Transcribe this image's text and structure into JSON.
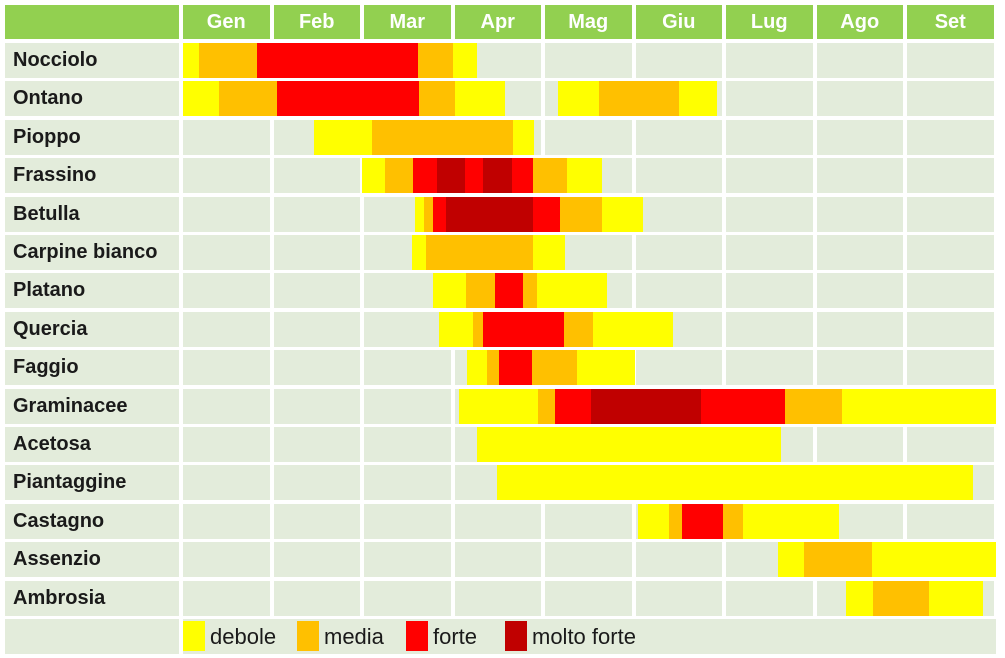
{
  "colors": {
    "header_bg": "#92D050",
    "header_text": "#FFFFFF",
    "cell_bg": "#E3ECDB",
    "label_text": "#1A1A1A",
    "background": "#FFFFFF"
  },
  "legend": {
    "items": [
      "debole",
      "media",
      "forte",
      "molto forte"
    ]
  },
  "chart_data": {
    "type": "heatmap",
    "title": "",
    "x_categories": [
      "Gen",
      "Feb",
      "Mar",
      "Apr",
      "Mag",
      "Giu",
      "Lug",
      "Ago",
      "Set"
    ],
    "x_unit": "months from start of Gen",
    "x_range": [
      0,
      9
    ],
    "legend_position": "bottom",
    "levels": [
      {
        "name": "debole",
        "color": "#FFFF00"
      },
      {
        "name": "media",
        "color": "#FFC000"
      },
      {
        "name": "forte",
        "color": "#FF0000"
      },
      {
        "name": "molto forte",
        "color": "#C00000"
      }
    ],
    "rows": [
      {
        "label": "Nocciolo",
        "segments": [
          {
            "start": 0.0,
            "end": 0.18,
            "level": "debole"
          },
          {
            "start": 0.18,
            "end": 0.82,
            "level": "media"
          },
          {
            "start": 0.82,
            "end": 2.6,
            "level": "forte"
          },
          {
            "start": 2.6,
            "end": 2.98,
            "level": "media"
          },
          {
            "start": 2.98,
            "end": 3.25,
            "level": "debole"
          }
        ]
      },
      {
        "label": "Ontano",
        "segments": [
          {
            "start": 0.0,
            "end": 0.4,
            "level": "debole"
          },
          {
            "start": 0.4,
            "end": 1.04,
            "level": "media"
          },
          {
            "start": 1.04,
            "end": 2.61,
            "level": "forte"
          },
          {
            "start": 2.61,
            "end": 3.01,
            "level": "media"
          },
          {
            "start": 3.01,
            "end": 3.56,
            "level": "debole"
          },
          {
            "start": 4.14,
            "end": 4.6,
            "level": "debole"
          },
          {
            "start": 4.6,
            "end": 5.48,
            "level": "media"
          },
          {
            "start": 5.48,
            "end": 5.9,
            "level": "debole"
          }
        ]
      },
      {
        "label": "Pioppo",
        "segments": [
          {
            "start": 1.45,
            "end": 2.09,
            "level": "debole"
          },
          {
            "start": 2.09,
            "end": 3.65,
            "level": "media"
          },
          {
            "start": 3.65,
            "end": 3.88,
            "level": "debole"
          }
        ]
      },
      {
        "label": "Frassino",
        "segments": [
          {
            "start": 1.98,
            "end": 2.23,
            "level": "debole"
          },
          {
            "start": 2.23,
            "end": 2.54,
            "level": "media"
          },
          {
            "start": 2.54,
            "end": 2.81,
            "level": "forte"
          },
          {
            "start": 2.81,
            "end": 3.12,
            "level": "molto forte"
          },
          {
            "start": 3.12,
            "end": 3.31,
            "level": "forte"
          },
          {
            "start": 3.31,
            "end": 3.64,
            "level": "molto forte"
          },
          {
            "start": 3.64,
            "end": 3.87,
            "level": "forte"
          },
          {
            "start": 3.87,
            "end": 4.24,
            "level": "media"
          },
          {
            "start": 4.24,
            "end": 4.63,
            "level": "debole"
          }
        ]
      },
      {
        "label": "Betulla",
        "segments": [
          {
            "start": 2.56,
            "end": 2.66,
            "level": "debole"
          },
          {
            "start": 2.66,
            "end": 2.76,
            "level": "media"
          },
          {
            "start": 2.76,
            "end": 2.91,
            "level": "forte"
          },
          {
            "start": 2.91,
            "end": 3.87,
            "level": "molto forte"
          },
          {
            "start": 3.87,
            "end": 4.17,
            "level": "forte"
          },
          {
            "start": 4.17,
            "end": 4.63,
            "level": "media"
          },
          {
            "start": 4.63,
            "end": 5.08,
            "level": "debole"
          }
        ]
      },
      {
        "label": "Carpine bianco",
        "segments": [
          {
            "start": 2.53,
            "end": 2.69,
            "level": "debole"
          },
          {
            "start": 2.69,
            "end": 3.87,
            "level": "media"
          },
          {
            "start": 3.87,
            "end": 4.22,
            "level": "debole"
          }
        ]
      },
      {
        "label": "Platano",
        "segments": [
          {
            "start": 2.76,
            "end": 3.13,
            "level": "debole"
          },
          {
            "start": 3.13,
            "end": 3.45,
            "level": "media"
          },
          {
            "start": 3.45,
            "end": 3.76,
            "level": "forte"
          },
          {
            "start": 3.76,
            "end": 3.91,
            "level": "media"
          },
          {
            "start": 3.91,
            "end": 4.69,
            "level": "debole"
          }
        ]
      },
      {
        "label": "Quercia",
        "segments": [
          {
            "start": 2.83,
            "end": 3.2,
            "level": "debole"
          },
          {
            "start": 3.2,
            "end": 3.31,
            "level": "media"
          },
          {
            "start": 3.31,
            "end": 4.21,
            "level": "forte"
          },
          {
            "start": 4.21,
            "end": 4.53,
            "level": "media"
          },
          {
            "start": 4.53,
            "end": 5.41,
            "level": "debole"
          }
        ]
      },
      {
        "label": "Faggio",
        "segments": [
          {
            "start": 3.14,
            "end": 3.36,
            "level": "debole"
          },
          {
            "start": 3.36,
            "end": 3.49,
            "level": "media"
          },
          {
            "start": 3.49,
            "end": 3.86,
            "level": "forte"
          },
          {
            "start": 3.86,
            "end": 4.35,
            "level": "media"
          },
          {
            "start": 4.35,
            "end": 5.0,
            "level": "debole"
          }
        ]
      },
      {
        "label": "Graminacee",
        "segments": [
          {
            "start": 3.05,
            "end": 3.92,
            "level": "debole"
          },
          {
            "start": 3.92,
            "end": 4.11,
            "level": "media"
          },
          {
            "start": 4.11,
            "end": 4.51,
            "level": "forte"
          },
          {
            "start": 4.51,
            "end": 5.72,
            "level": "molto forte"
          },
          {
            "start": 5.72,
            "end": 6.65,
            "level": "forte"
          },
          {
            "start": 6.65,
            "end": 7.28,
            "level": "media"
          },
          {
            "start": 7.28,
            "end": 9.0,
            "level": "debole"
          }
        ]
      },
      {
        "label": "Acetosa",
        "segments": [
          {
            "start": 3.25,
            "end": 6.61,
            "level": "debole"
          }
        ]
      },
      {
        "label": "Piantaggine",
        "segments": [
          {
            "start": 3.47,
            "end": 8.73,
            "level": "debole"
          }
        ]
      },
      {
        "label": "Castagno",
        "segments": [
          {
            "start": 5.03,
            "end": 5.37,
            "level": "debole"
          },
          {
            "start": 5.37,
            "end": 5.51,
            "level": "media"
          },
          {
            "start": 5.51,
            "end": 5.97,
            "level": "forte"
          },
          {
            "start": 5.97,
            "end": 6.19,
            "level": "media"
          },
          {
            "start": 6.19,
            "end": 7.25,
            "level": "debole"
          }
        ]
      },
      {
        "label": "Assenzio",
        "segments": [
          {
            "start": 6.57,
            "end": 6.86,
            "level": "debole"
          },
          {
            "start": 6.86,
            "end": 7.61,
            "level": "media"
          },
          {
            "start": 7.61,
            "end": 9.0,
            "level": "debole"
          }
        ]
      },
      {
        "label": "Ambrosia",
        "segments": [
          {
            "start": 7.33,
            "end": 7.62,
            "level": "debole"
          },
          {
            "start": 7.62,
            "end": 8.24,
            "level": "media"
          },
          {
            "start": 8.24,
            "end": 8.84,
            "level": "debole"
          }
        ]
      }
    ]
  }
}
